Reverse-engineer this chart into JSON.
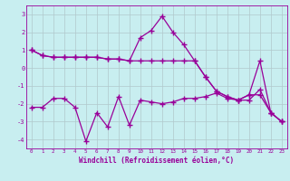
{
  "xlabel": "Windchill (Refroidissement éolien,°C)",
  "x": [
    0,
    1,
    2,
    3,
    4,
    5,
    6,
    7,
    8,
    9,
    10,
    11,
    12,
    13,
    14,
    15,
    16,
    17,
    18,
    19,
    20,
    21,
    22,
    23
  ],
  "line1": [
    1.0,
    0.7,
    0.6,
    0.6,
    0.6,
    0.6,
    0.6,
    0.5,
    0.5,
    0.4,
    1.7,
    2.1,
    2.9,
    2.0,
    1.3,
    0.4,
    -0.5,
    -1.3,
    -1.6,
    -1.8,
    -1.5,
    0.4,
    -2.5,
    -3.0
  ],
  "line2": [
    1.0,
    0.7,
    0.6,
    0.6,
    0.6,
    0.6,
    0.6,
    0.5,
    0.5,
    0.4,
    0.4,
    0.4,
    0.4,
    0.4,
    0.4,
    0.4,
    -0.5,
    -1.3,
    -1.6,
    -1.8,
    -1.5,
    -1.5,
    -2.5,
    -3.0
  ],
  "line3": [
    -2.2,
    -2.2,
    -1.7,
    -1.7,
    -2.2,
    -4.1,
    -2.5,
    -3.3,
    -1.6,
    -3.2,
    -1.8,
    -1.9,
    -2.0,
    -1.9,
    -1.7,
    -1.7,
    -1.6,
    -1.4,
    -1.7,
    -1.8,
    -1.8,
    -1.2,
    -2.5,
    -3.0
  ],
  "line_color": "#990099",
  "bg_color": "#c8eef0",
  "grid_color": "#b0c8cc",
  "ylim": [
    -4.5,
    3.5
  ],
  "xlim": [
    -0.5,
    23.5
  ],
  "yticks": [
    -4,
    -3,
    -2,
    -1,
    0,
    1,
    2,
    3
  ],
  "marker": "+",
  "markersize": 4,
  "linewidth": 0.9
}
